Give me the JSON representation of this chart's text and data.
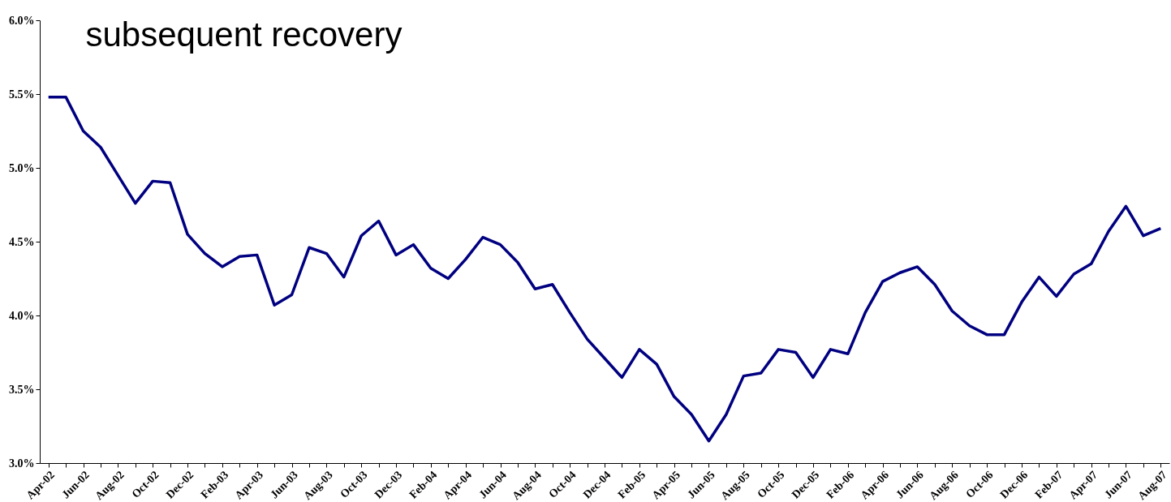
{
  "chart_data": {
    "type": "line",
    "title": "subsequent recovery",
    "categories": [
      "Apr-02",
      null,
      "Jun-02",
      null,
      "Aug-02",
      null,
      "Oct-02",
      null,
      "Dec-02",
      null,
      "Feb-03",
      null,
      "Apr-03",
      null,
      "Jun-03",
      null,
      "Aug-03",
      null,
      "Oct-03",
      null,
      "Dec-03",
      null,
      "Feb-04",
      null,
      "Apr-04",
      null,
      "Jun-04",
      null,
      "Aug-04",
      null,
      "Oct-04",
      null,
      "Dec-04",
      null,
      "Feb-05",
      null,
      "Apr-05",
      null,
      "Jun-05",
      null,
      "Aug-05",
      null,
      "Oct-05",
      null,
      "Dec-05",
      null,
      "Feb-06",
      null,
      "Apr-06",
      null,
      "Jun-06",
      null,
      "Aug-06",
      null,
      "Oct-06",
      null,
      "Dec-06",
      null,
      "Feb-07",
      null,
      "Apr-07",
      null,
      "Jun-07",
      null,
      "Aug-07"
    ],
    "series": [
      {
        "color": "#000080",
        "values": [
          5.48,
          5.48,
          5.25,
          5.14,
          4.95,
          4.76,
          4.91,
          4.9,
          4.55,
          4.42,
          4.33,
          4.4,
          4.41,
          4.07,
          4.14,
          4.46,
          4.42,
          4.26,
          4.54,
          4.64,
          4.41,
          4.48,
          4.32,
          4.25,
          4.38,
          4.53,
          4.48,
          4.36,
          4.18,
          4.21,
          4.02,
          3.84,
          3.71,
          3.58,
          3.77,
          3.67,
          3.45,
          3.33,
          3.15,
          3.33,
          3.59,
          3.61,
          3.77,
          3.75,
          3.58,
          3.77,
          3.74,
          4.02,
          4.23,
          4.29,
          4.33,
          4.21,
          4.03,
          3.93,
          3.87,
          3.87,
          4.09,
          4.26,
          4.13,
          4.28,
          4.35,
          4.57,
          4.74,
          4.54,
          4.59
        ]
      }
    ],
    "ylim": [
      3.0,
      6.0
    ],
    "yticks": [
      {
        "value": 3.0,
        "label": "3.0%"
      },
      {
        "value": 3.5,
        "label": "3.5%"
      },
      {
        "value": 4.0,
        "label": "4.0%"
      },
      {
        "value": 4.5,
        "label": "4.5%"
      },
      {
        "value": 5.0,
        "label": "5.0%"
      },
      {
        "value": 5.5,
        "label": "5.5%"
      },
      {
        "value": 6.0,
        "label": "6.0%"
      }
    ],
    "grid": false,
    "legend": false,
    "marker": "none",
    "line_style": "solid"
  }
}
